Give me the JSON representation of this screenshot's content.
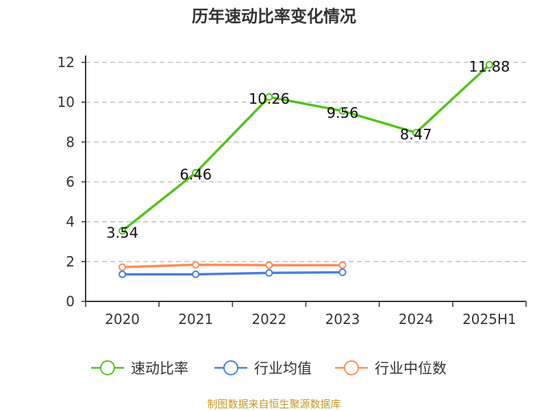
{
  "chart_data": {
    "type": "line",
    "title": "历年速动比率变化情况",
    "categories": [
      "2020",
      "2021",
      "2022",
      "2023",
      "2024",
      "2025H1"
    ],
    "ylim": [
      0,
      12
    ],
    "yticks": [
      0,
      2,
      4,
      6,
      8,
      10,
      12
    ],
    "grid": true,
    "legend_position": "bottom",
    "series": [
      {
        "name": "速动比率",
        "color": "#52c41a",
        "values": [
          3.54,
          6.46,
          10.26,
          9.56,
          8.47,
          11.88
        ],
        "labels": [
          "3.54",
          "6.46",
          "10.26",
          "9.56",
          "8.47",
          "11.88"
        ]
      },
      {
        "name": "行业均值",
        "color": "#4a7fe0",
        "values": [
          1.36,
          1.36,
          1.43,
          1.46,
          null,
          null
        ]
      },
      {
        "name": "行业中位数",
        "color": "#ff8c55",
        "values": [
          1.72,
          1.84,
          1.82,
          1.82,
          null,
          null
        ]
      }
    ]
  },
  "source": "制图数据来自恒生聚源数据库"
}
